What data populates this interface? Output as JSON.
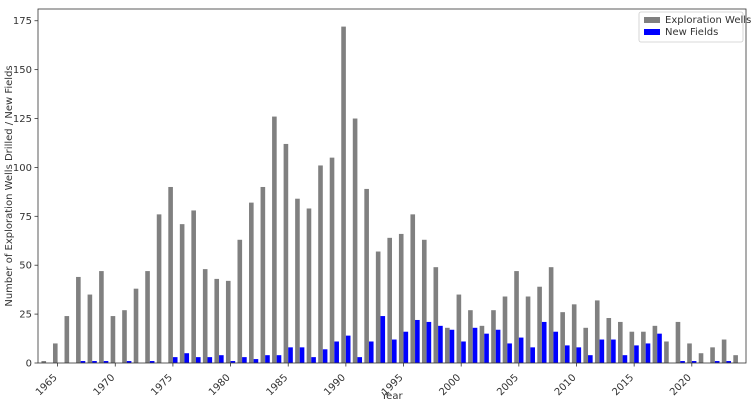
{
  "chart_data": {
    "type": "bar",
    "xlabel": "Year",
    "ylabel": "Number of Exploration Wells Drilled / New Fields",
    "ylim": [
      0,
      181
    ],
    "xlim": [
      1963.3,
      2024.7
    ],
    "y_ticks": [
      0,
      25,
      50,
      75,
      100,
      125,
      150,
      175
    ],
    "x_ticks": [
      1965,
      1970,
      1975,
      1980,
      1985,
      1990,
      1995,
      2000,
      2005,
      2010,
      2015,
      2020
    ],
    "grid": false,
    "legend_position": "top-right",
    "x": [
      1964,
      1965,
      1966,
      1967,
      1968,
      1969,
      1970,
      1971,
      1972,
      1973,
      1974,
      1975,
      1976,
      1977,
      1978,
      1979,
      1980,
      1981,
      1982,
      1983,
      1984,
      1985,
      1986,
      1987,
      1988,
      1989,
      1990,
      1991,
      1992,
      1993,
      1994,
      1995,
      1996,
      1997,
      1998,
      1999,
      2000,
      2001,
      2002,
      2003,
      2004,
      2005,
      2006,
      2007,
      2008,
      2009,
      2010,
      2011,
      2012,
      2013,
      2014,
      2015,
      2016,
      2017,
      2018,
      2019,
      2020,
      2021,
      2022,
      2023,
      2024
    ],
    "series": [
      {
        "name": "Exploration Wells",
        "color": "#808080",
        "values": [
          1,
          10,
          24,
          44,
          35,
          47,
          24,
          27,
          38,
          47,
          76,
          90,
          71,
          78,
          48,
          43,
          42,
          63,
          82,
          90,
          126,
          112,
          84,
          79,
          101,
          105,
          172,
          125,
          89,
          57,
          64,
          66,
          76,
          63,
          49,
          18,
          35,
          27,
          19,
          27,
          34,
          47,
          34,
          39,
          49,
          26,
          30,
          18,
          32,
          23,
          21,
          16,
          16,
          19,
          11,
          21,
          10,
          5,
          8,
          12,
          4
        ]
      },
      {
        "name": "New Fields",
        "color": "#0000ff",
        "values": [
          0,
          0,
          0,
          1,
          1,
          1,
          0,
          1,
          0,
          1,
          0,
          3,
          5,
          3,
          3,
          4,
          1,
          3,
          2,
          4,
          4,
          8,
          8,
          3,
          7,
          11,
          14,
          3,
          11,
          24,
          12,
          16,
          22,
          21,
          19,
          17,
          11,
          18,
          15,
          17,
          10,
          13,
          8,
          21,
          16,
          9,
          8,
          4,
          12,
          12,
          4,
          9,
          10,
          15,
          0,
          1,
          1,
          0,
          1,
          1,
          0
        ]
      }
    ]
  }
}
